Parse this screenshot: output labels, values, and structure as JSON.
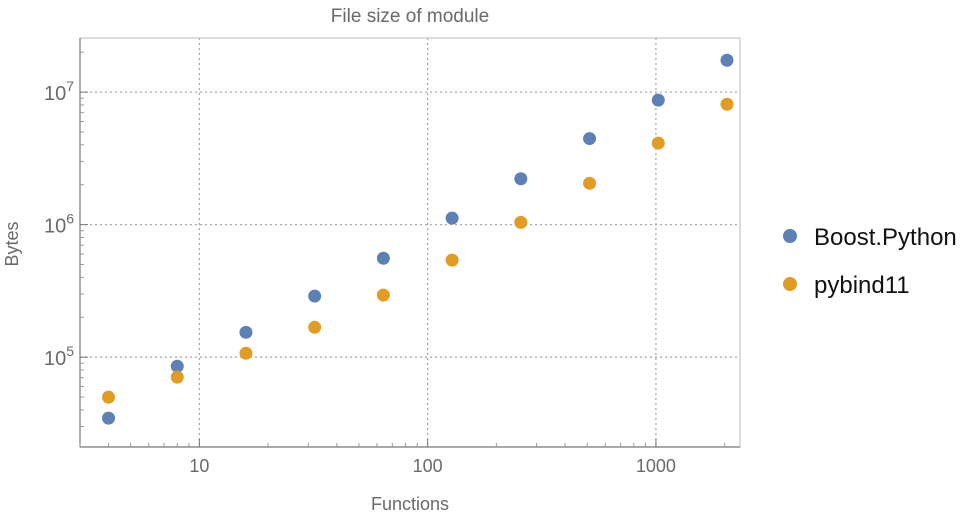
{
  "chart_data": {
    "type": "scatter",
    "title": "File size of module",
    "xlabel": "Functions",
    "ylabel": "Bytes",
    "xscale": "log",
    "yscale": "log",
    "xlim": [
      3,
      2335
    ],
    "ylim": [
      21000,
      25600000
    ],
    "grid": true,
    "legend_position": "right",
    "x_ticks": [
      {
        "value": 10,
        "label": "10"
      },
      {
        "value": 100,
        "label": "100"
      },
      {
        "value": 1000,
        "label": "1000"
      }
    ],
    "y_ticks": [
      {
        "value": 100000,
        "base": "10",
        "exp": "5"
      },
      {
        "value": 1000000,
        "base": "10",
        "exp": "6"
      },
      {
        "value": 10000000,
        "base": "10",
        "exp": "7"
      }
    ],
    "x": [
      4,
      8,
      16,
      32,
      64,
      128,
      256,
      512,
      1024,
      2048
    ],
    "series": [
      {
        "name": "Boost.Python",
        "color": "#5e81b5",
        "values": [
          34700,
          85500,
          154000,
          289000,
          558000,
          1120000,
          2220000,
          4460000,
          8700000,
          17400000
        ]
      },
      {
        "name": "pybind11",
        "color": "#e19c24",
        "values": [
          49900,
          70700,
          107000,
          168000,
          294000,
          540000,
          1040000,
          2050000,
          4120000,
          8100000
        ]
      }
    ]
  }
}
